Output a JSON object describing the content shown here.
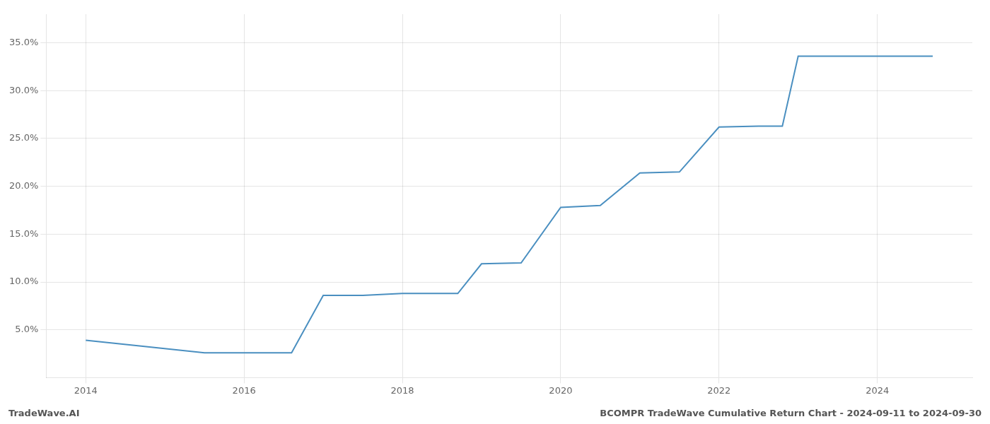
{
  "chart_data": {
    "type": "line",
    "title": "BCOMPR TradeWave Cumulative Return Chart - 2024-09-11 to 2024-09-30",
    "annotations": [
      "TradeWave.AI"
    ],
    "color": "#4a8fc0",
    "x": [
      2014.0,
      2014.7,
      2015.5,
      2016.0,
      2016.6,
      2017.0,
      2017.5,
      2018.0,
      2018.3,
      2018.7,
      2019.0,
      2019.5,
      2020.0,
      2020.5,
      2021.0,
      2021.5,
      2022.0,
      2022.5,
      2022.8,
      2023.0,
      2023.5,
      2024.0,
      2024.7
    ],
    "values": [
      3.9,
      3.3,
      2.6,
      2.6,
      2.6,
      8.6,
      8.6,
      8.8,
      8.8,
      8.8,
      11.9,
      12.0,
      17.8,
      18.0,
      21.4,
      21.5,
      26.2,
      26.3,
      26.3,
      33.6,
      33.6,
      33.6,
      33.6
    ],
    "xlim": [
      2013.5,
      2025.2
    ],
    "ylim": [
      0,
      38
    ],
    "xticks": [
      2014,
      2016,
      2018,
      2020,
      2022,
      2024
    ],
    "yticks": [
      {
        "value": 5.0,
        "label": "5.0%"
      },
      {
        "value": 10.0,
        "label": "10.0%"
      },
      {
        "value": 15.0,
        "label": "15.0%"
      },
      {
        "value": 20.0,
        "label": "20.0%"
      },
      {
        "value": 25.0,
        "label": "25.0%"
      },
      {
        "value": 30.0,
        "label": "30.0%"
      },
      {
        "value": 35.0,
        "label": "35.0%"
      }
    ],
    "grid": true
  }
}
